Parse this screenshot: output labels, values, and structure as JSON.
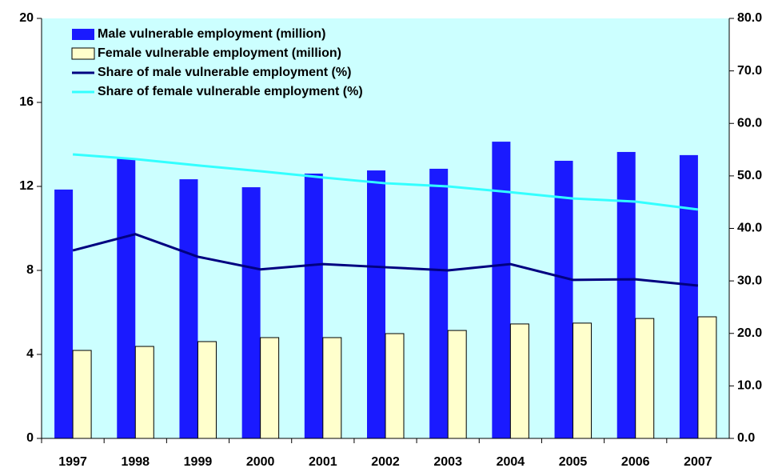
{
  "chart_data": {
    "type": "bar",
    "categories": [
      "1997",
      "1998",
      "1999",
      "2000",
      "2001",
      "2002",
      "2003",
      "2004",
      "2005",
      "2006",
      "2007"
    ],
    "series": [
      {
        "name": "Male vulnerable employment (million)",
        "type": "bar",
        "color": "#1a1aff",
        "values": [
          11.85,
          13.33,
          12.34,
          11.96,
          12.61,
          12.76,
          12.84,
          14.13,
          13.22,
          13.64,
          13.49
        ]
      },
      {
        "name": "Female vulnerable employment (million)",
        "type": "bar",
        "color": "#ffffcc",
        "values": [
          4.19,
          4.38,
          4.61,
          4.8,
          4.8,
          4.99,
          5.14,
          5.45,
          5.49,
          5.71,
          5.79
        ]
      },
      {
        "name": "Share of male vulnerable employment (%)",
        "type": "line",
        "axis": "y2",
        "color": "#000080",
        "values": [
          35.8,
          38.9,
          34.6,
          32.2,
          33.2,
          32.6,
          32.0,
          33.2,
          30.2,
          30.3,
          29.1
        ]
      },
      {
        "name": "Share of female vulnerable employment (%)",
        "type": "line",
        "axis": "y2",
        "color": "#33ffff",
        "values": [
          54.1,
          53.2,
          52.0,
          50.9,
          49.7,
          48.6,
          48.0,
          46.9,
          45.7,
          45.1,
          43.6
        ]
      }
    ],
    "ylim": [
      0,
      20
    ],
    "yticks": [
      0,
      4,
      8,
      12,
      16,
      20
    ],
    "y2lim": [
      0,
      80
    ],
    "y2ticks": [
      {
        "value": 0,
        "label": "0.0"
      },
      {
        "value": 10,
        "label": "10.0"
      },
      {
        "value": 20,
        "label": "20.0"
      },
      {
        "value": 30,
        "label": "30.0"
      },
      {
        "value": 40,
        "label": "40.0"
      },
      {
        "value": 50,
        "label": "50.0"
      },
      {
        "value": 60,
        "label": "60.0"
      },
      {
        "value": 70,
        "label": "70.0"
      },
      {
        "value": 80,
        "label": "80.0"
      }
    ],
    "background": "#ccffff",
    "legend": "top-left"
  }
}
